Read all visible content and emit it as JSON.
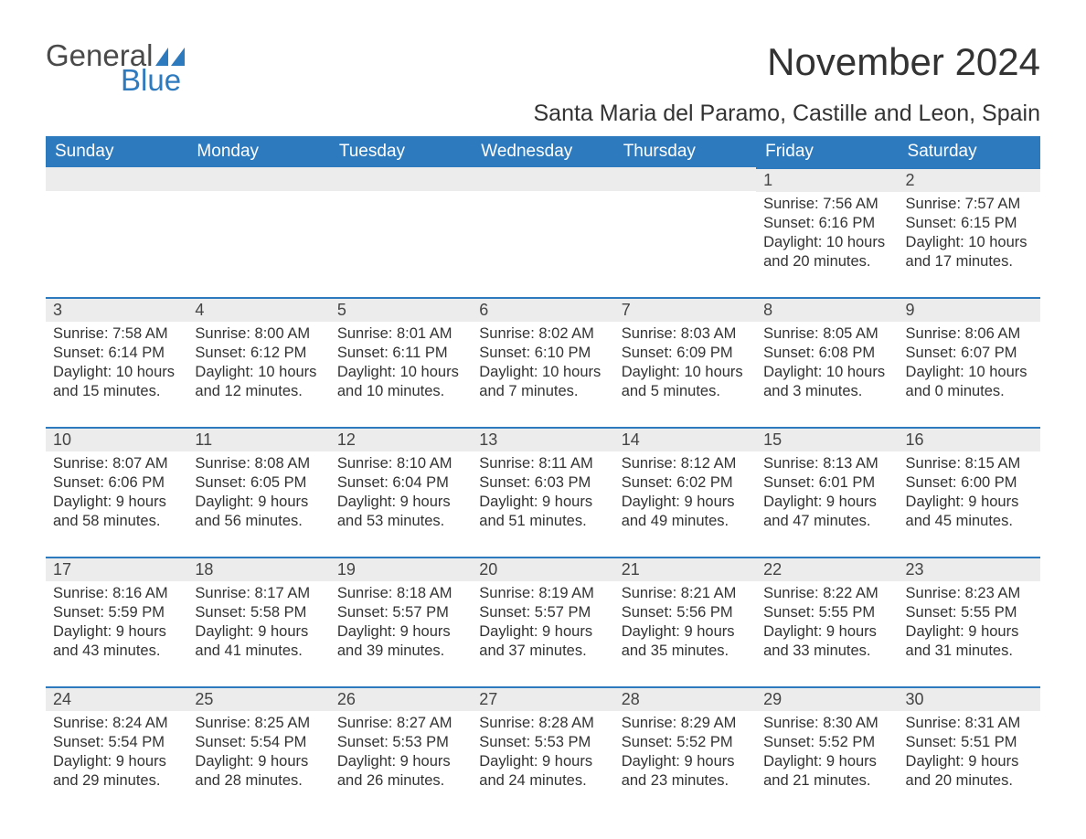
{
  "logo": {
    "word1": "General",
    "word2": "Blue"
  },
  "title": "November 2024",
  "location": "Santa Maria del Paramo, Castille and Leon, Spain",
  "colors": {
    "header_bg": "#2e7abf",
    "header_text": "#ffffff",
    "daynum_bg": "#ececec",
    "daynum_border": "#2e7abf",
    "body_text": "#333333",
    "logo_gray": "#4a4a4a",
    "logo_blue": "#2e7abf",
    "page_bg": "#ffffff"
  },
  "typography": {
    "month_title_fontsize": 42,
    "location_fontsize": 25,
    "weekday_fontsize": 19,
    "daynum_fontsize": 18,
    "body_fontsize": 16.5
  },
  "calendar": {
    "type": "table",
    "columns": [
      "Sunday",
      "Monday",
      "Tuesday",
      "Wednesday",
      "Thursday",
      "Friday",
      "Saturday"
    ],
    "weeks": [
      {
        "days": [
          null,
          null,
          null,
          null,
          null,
          {
            "n": "1",
            "sunrise": "Sunrise: 7:56 AM",
            "sunset": "Sunset: 6:16 PM",
            "daylight": "Daylight: 10 hours and 20 minutes."
          },
          {
            "n": "2",
            "sunrise": "Sunrise: 7:57 AM",
            "sunset": "Sunset: 6:15 PM",
            "daylight": "Daylight: 10 hours and 17 minutes."
          }
        ]
      },
      {
        "days": [
          {
            "n": "3",
            "sunrise": "Sunrise: 7:58 AM",
            "sunset": "Sunset: 6:14 PM",
            "daylight": "Daylight: 10 hours and 15 minutes."
          },
          {
            "n": "4",
            "sunrise": "Sunrise: 8:00 AM",
            "sunset": "Sunset: 6:12 PM",
            "daylight": "Daylight: 10 hours and 12 minutes."
          },
          {
            "n": "5",
            "sunrise": "Sunrise: 8:01 AM",
            "sunset": "Sunset: 6:11 PM",
            "daylight": "Daylight: 10 hours and 10 minutes."
          },
          {
            "n": "6",
            "sunrise": "Sunrise: 8:02 AM",
            "sunset": "Sunset: 6:10 PM",
            "daylight": "Daylight: 10 hours and 7 minutes."
          },
          {
            "n": "7",
            "sunrise": "Sunrise: 8:03 AM",
            "sunset": "Sunset: 6:09 PM",
            "daylight": "Daylight: 10 hours and 5 minutes."
          },
          {
            "n": "8",
            "sunrise": "Sunrise: 8:05 AM",
            "sunset": "Sunset: 6:08 PM",
            "daylight": "Daylight: 10 hours and 3 minutes."
          },
          {
            "n": "9",
            "sunrise": "Sunrise: 8:06 AM",
            "sunset": "Sunset: 6:07 PM",
            "daylight": "Daylight: 10 hours and 0 minutes."
          }
        ]
      },
      {
        "days": [
          {
            "n": "10",
            "sunrise": "Sunrise: 8:07 AM",
            "sunset": "Sunset: 6:06 PM",
            "daylight": "Daylight: 9 hours and 58 minutes."
          },
          {
            "n": "11",
            "sunrise": "Sunrise: 8:08 AM",
            "sunset": "Sunset: 6:05 PM",
            "daylight": "Daylight: 9 hours and 56 minutes."
          },
          {
            "n": "12",
            "sunrise": "Sunrise: 8:10 AM",
            "sunset": "Sunset: 6:04 PM",
            "daylight": "Daylight: 9 hours and 53 minutes."
          },
          {
            "n": "13",
            "sunrise": "Sunrise: 8:11 AM",
            "sunset": "Sunset: 6:03 PM",
            "daylight": "Daylight: 9 hours and 51 minutes."
          },
          {
            "n": "14",
            "sunrise": "Sunrise: 8:12 AM",
            "sunset": "Sunset: 6:02 PM",
            "daylight": "Daylight: 9 hours and 49 minutes."
          },
          {
            "n": "15",
            "sunrise": "Sunrise: 8:13 AM",
            "sunset": "Sunset: 6:01 PM",
            "daylight": "Daylight: 9 hours and 47 minutes."
          },
          {
            "n": "16",
            "sunrise": "Sunrise: 8:15 AM",
            "sunset": "Sunset: 6:00 PM",
            "daylight": "Daylight: 9 hours and 45 minutes."
          }
        ]
      },
      {
        "days": [
          {
            "n": "17",
            "sunrise": "Sunrise: 8:16 AM",
            "sunset": "Sunset: 5:59 PM",
            "daylight": "Daylight: 9 hours and 43 minutes."
          },
          {
            "n": "18",
            "sunrise": "Sunrise: 8:17 AM",
            "sunset": "Sunset: 5:58 PM",
            "daylight": "Daylight: 9 hours and 41 minutes."
          },
          {
            "n": "19",
            "sunrise": "Sunrise: 8:18 AM",
            "sunset": "Sunset: 5:57 PM",
            "daylight": "Daylight: 9 hours and 39 minutes."
          },
          {
            "n": "20",
            "sunrise": "Sunrise: 8:19 AM",
            "sunset": "Sunset: 5:57 PM",
            "daylight": "Daylight: 9 hours and 37 minutes."
          },
          {
            "n": "21",
            "sunrise": "Sunrise: 8:21 AM",
            "sunset": "Sunset: 5:56 PM",
            "daylight": "Daylight: 9 hours and 35 minutes."
          },
          {
            "n": "22",
            "sunrise": "Sunrise: 8:22 AM",
            "sunset": "Sunset: 5:55 PM",
            "daylight": "Daylight: 9 hours and 33 minutes."
          },
          {
            "n": "23",
            "sunrise": "Sunrise: 8:23 AM",
            "sunset": "Sunset: 5:55 PM",
            "daylight": "Daylight: 9 hours and 31 minutes."
          }
        ]
      },
      {
        "days": [
          {
            "n": "24",
            "sunrise": "Sunrise: 8:24 AM",
            "sunset": "Sunset: 5:54 PM",
            "daylight": "Daylight: 9 hours and 29 minutes."
          },
          {
            "n": "25",
            "sunrise": "Sunrise: 8:25 AM",
            "sunset": "Sunset: 5:54 PM",
            "daylight": "Daylight: 9 hours and 28 minutes."
          },
          {
            "n": "26",
            "sunrise": "Sunrise: 8:27 AM",
            "sunset": "Sunset: 5:53 PM",
            "daylight": "Daylight: 9 hours and 26 minutes."
          },
          {
            "n": "27",
            "sunrise": "Sunrise: 8:28 AM",
            "sunset": "Sunset: 5:53 PM",
            "daylight": "Daylight: 9 hours and 24 minutes."
          },
          {
            "n": "28",
            "sunrise": "Sunrise: 8:29 AM",
            "sunset": "Sunset: 5:52 PM",
            "daylight": "Daylight: 9 hours and 23 minutes."
          },
          {
            "n": "29",
            "sunrise": "Sunrise: 8:30 AM",
            "sunset": "Sunset: 5:52 PM",
            "daylight": "Daylight: 9 hours and 21 minutes."
          },
          {
            "n": "30",
            "sunrise": "Sunrise: 8:31 AM",
            "sunset": "Sunset: 5:51 PM",
            "daylight": "Daylight: 9 hours and 20 minutes."
          }
        ]
      }
    ]
  }
}
